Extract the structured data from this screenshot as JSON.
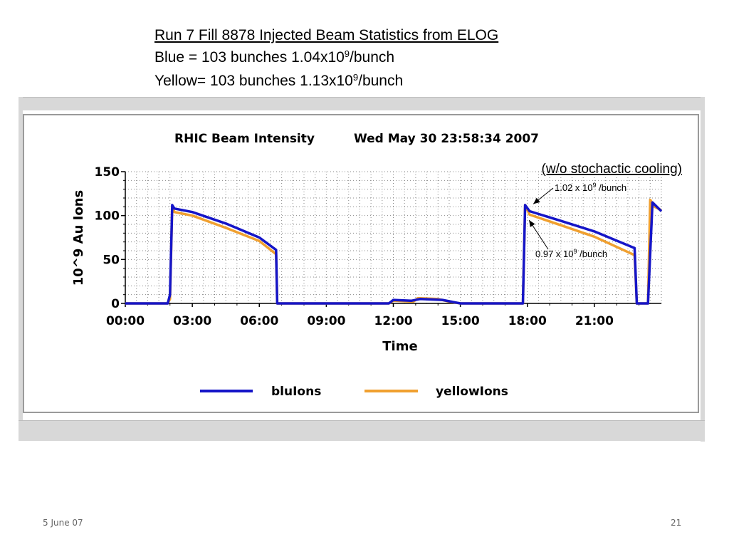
{
  "slide": {
    "heading_title": "Run 7 Fill 8878 Injected Beam Statistics from ELOG",
    "blue_line": {
      "prefix": "Blue   = 103 bunches 1.04x10",
      "exp": "9",
      "suffix": "/bunch"
    },
    "yellow_line": {
      "prefix": "Yellow= 103 bunches 1.13x10",
      "exp": "9",
      "suffix": "/bunch"
    },
    "footer_date": "5 June 07",
    "footer_page": "21"
  },
  "chart_data": {
    "type": "line",
    "title": "RHIC Beam Intensity",
    "timestamp": "Wed May 30 23:58:34 2007",
    "xlabel": "Time",
    "ylabel": "10^9 Au Ions",
    "ylim": [
      0,
      150
    ],
    "xlim_hours": [
      0,
      24
    ],
    "x_tick_labels": [
      "00:00",
      "03:00",
      "06:00",
      "09:00",
      "12:00",
      "15:00",
      "18:00",
      "21:00"
    ],
    "y_tick_labels": [
      "0",
      "50",
      "100",
      "150"
    ],
    "grid": true,
    "colors": {
      "blue": "#1515c8",
      "yellow": "#f0a030"
    },
    "series": [
      {
        "name": "bluIons",
        "color": "#1515c8",
        "points": [
          [
            0.0,
            0
          ],
          [
            1.9,
            0
          ],
          [
            2.0,
            10
          ],
          [
            2.1,
            112
          ],
          [
            2.2,
            108
          ],
          [
            3.0,
            104
          ],
          [
            4.5,
            91
          ],
          [
            6.0,
            75
          ],
          [
            6.75,
            61
          ],
          [
            6.8,
            0
          ],
          [
            11.8,
            0
          ],
          [
            12.0,
            4
          ],
          [
            12.8,
            3
          ],
          [
            13.2,
            5
          ],
          [
            14.2,
            4
          ],
          [
            15.0,
            0
          ],
          [
            17.8,
            0
          ],
          [
            17.9,
            112
          ],
          [
            18.1,
            105
          ],
          [
            19.5,
            94
          ],
          [
            21.0,
            82
          ],
          [
            22.8,
            63
          ],
          [
            22.9,
            0
          ],
          [
            23.4,
            0
          ],
          [
            23.6,
            115
          ],
          [
            24.0,
            105
          ]
        ]
      },
      {
        "name": "yellowIons",
        "color": "#f0a030",
        "points": [
          [
            0.0,
            0
          ],
          [
            1.9,
            0
          ],
          [
            2.0,
            5
          ],
          [
            2.1,
            110
          ],
          [
            2.2,
            104
          ],
          [
            3.0,
            100
          ],
          [
            4.5,
            86
          ],
          [
            6.0,
            71
          ],
          [
            6.75,
            56
          ],
          [
            6.8,
            0
          ],
          [
            11.8,
            0
          ],
          [
            12.0,
            3
          ],
          [
            12.9,
            2
          ],
          [
            13.1,
            6
          ],
          [
            14.0,
            5
          ],
          [
            14.5,
            2
          ],
          [
            15.0,
            0
          ],
          [
            17.8,
            0
          ],
          [
            17.9,
            112
          ],
          [
            18.1,
            101
          ],
          [
            19.5,
            89
          ],
          [
            21.0,
            76
          ],
          [
            22.8,
            55
          ],
          [
            22.9,
            0
          ],
          [
            23.4,
            0
          ],
          [
            23.5,
            118
          ],
          [
            23.7,
            110
          ],
          [
            24.0,
            106
          ]
        ]
      }
    ],
    "annotations": [
      {
        "label": "1.02 x 10",
        "exp": "9",
        "suffix": " /bunch",
        "x_hours": 17.95,
        "y_value": 110
      },
      {
        "label": "0.97 x 10",
        "exp": "9",
        "suffix": " /bunch",
        "x_hours": 17.95,
        "y_value": 98
      }
    ],
    "note": "(w/o stochactic cooling)"
  }
}
